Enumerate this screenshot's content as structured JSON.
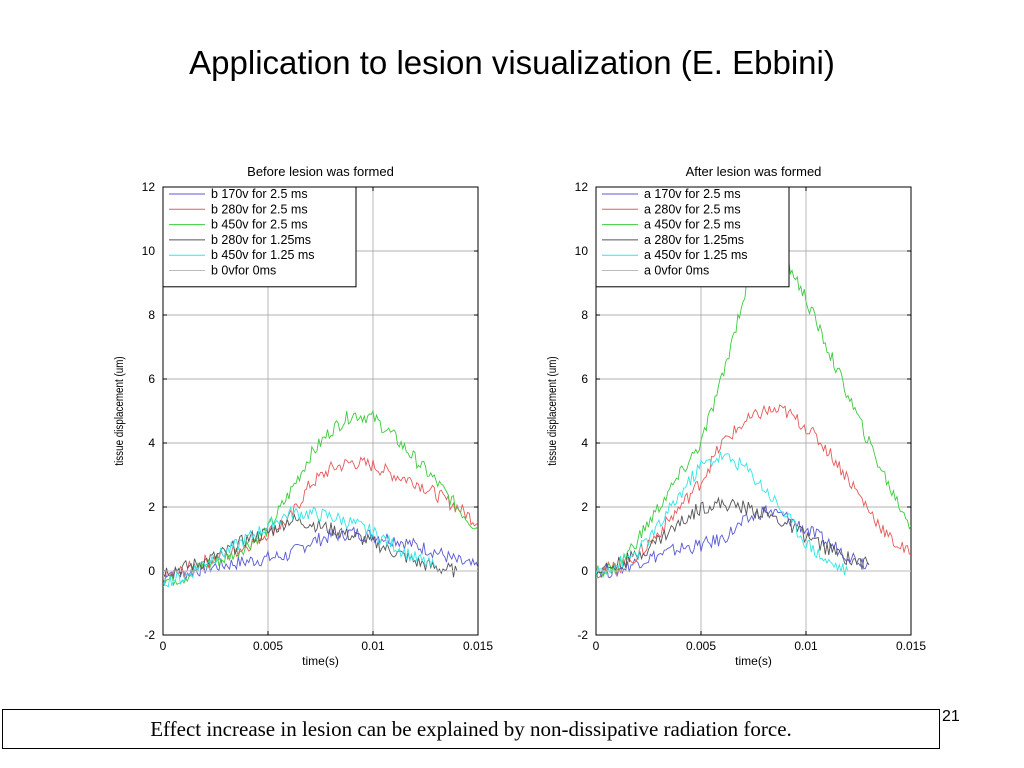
{
  "slide": {
    "title": "Application to lesion visualization (E. Ebbini)",
    "caption": "Effect increase in lesion can be explained by non-dissipative radiation force.",
    "page_number": "21"
  },
  "chart_data": [
    {
      "type": "line",
      "title": "Before lesion was formed",
      "xlabel": "time(s)",
      "ylabel": "tissue displacement (um)",
      "xlim": [
        0,
        0.015
      ],
      "ylim": [
        -2,
        12
      ],
      "xticks": [
        "0",
        "0.005",
        "0.01",
        "0.015"
      ],
      "yticks": [
        "-2",
        "0",
        "2",
        "4",
        "6",
        "8",
        "10",
        "12"
      ],
      "grid": true,
      "legend": "top-left",
      "series": [
        {
          "name": "b 170v for 2.5 ms",
          "color": "#5b5bd6",
          "x": [
            0,
            0.001,
            0.002,
            0.003,
            0.004,
            0.005,
            0.006,
            0.007,
            0.008,
            0.009,
            0.01,
            0.011,
            0.012,
            0.013,
            0.014,
            0.015
          ],
          "y": [
            0,
            -0.1,
            0.1,
            0.2,
            0.3,
            0.4,
            0.5,
            0.9,
            1.1,
            1.2,
            1.1,
            1.0,
            0.8,
            0.6,
            0.3,
            0.1
          ]
        },
        {
          "name": "b 280v for 2.5 ms",
          "color": "#e85a5a",
          "x": [
            0,
            0.001,
            0.002,
            0.003,
            0.004,
            0.005,
            0.006,
            0.007,
            0.008,
            0.009,
            0.01,
            0.011,
            0.012,
            0.013,
            0.014,
            0.015
          ],
          "y": [
            -0.2,
            0.0,
            0.3,
            0.5,
            0.8,
            1.2,
            1.6,
            2.7,
            3.2,
            3.4,
            3.3,
            3.0,
            2.8,
            2.4,
            2.0,
            1.5
          ]
        },
        {
          "name": "b 450v for 2.5 ms",
          "color": "#3ccc3c",
          "x": [
            0,
            0.001,
            0.002,
            0.003,
            0.004,
            0.005,
            0.006,
            0.007,
            0.008,
            0.009,
            0.01,
            0.011,
            0.012,
            0.013,
            0.014,
            0.015
          ],
          "y": [
            -0.3,
            -0.2,
            0.2,
            0.4,
            0.8,
            1.3,
            2.4,
            3.6,
            4.4,
            4.9,
            4.8,
            4.2,
            3.5,
            2.8,
            2.0,
            1.3
          ]
        },
        {
          "name": "b 280v for 1.25ms",
          "color": "#555555",
          "x": [
            0,
            0.001,
            0.002,
            0.003,
            0.004,
            0.005,
            0.006,
            0.007,
            0.008,
            0.009,
            0.01,
            0.011,
            0.012,
            0.013,
            0.014
          ],
          "y": [
            0,
            0.1,
            0.3,
            0.6,
            1.0,
            1.2,
            1.6,
            1.5,
            1.3,
            1.1,
            0.9,
            0.6,
            0.3,
            0.1,
            0.0
          ]
        },
        {
          "name": "b 450v for 1.25 ms",
          "color": "#33e6e6",
          "x": [
            0,
            0.001,
            0.002,
            0.003,
            0.004,
            0.005,
            0.006,
            0.007,
            0.008,
            0.009,
            0.01,
            0.011,
            0.012,
            0.013
          ],
          "y": [
            -0.3,
            -0.2,
            0.3,
            0.6,
            1.0,
            1.4,
            1.8,
            1.8,
            1.7,
            1.5,
            1.2,
            0.8,
            0.4,
            0.1
          ]
        },
        {
          "name": "b 0vfor 0ms",
          "color": "#bbbbbb",
          "x": [
            0,
            0.015
          ],
          "y": [
            0,
            0
          ]
        }
      ]
    },
    {
      "type": "line",
      "title": "After lesion was formed",
      "xlabel": "time(s)",
      "ylabel": "tissue displacement (um)",
      "xlim": [
        0,
        0.015
      ],
      "ylim": [
        -2,
        12
      ],
      "xticks": [
        "0",
        "0.005",
        "0.01",
        "0.015"
      ],
      "yticks": [
        "-2",
        "0",
        "2",
        "4",
        "6",
        "8",
        "10",
        "12"
      ],
      "grid": true,
      "legend": "top-left",
      "series": [
        {
          "name": "a 170v for 2.5 ms",
          "color": "#5b5bd6",
          "x": [
            0,
            0.001,
            0.002,
            0.003,
            0.004,
            0.005,
            0.006,
            0.007,
            0.008,
            0.009,
            0.01,
            0.011,
            0.012,
            0.013
          ],
          "y": [
            0,
            0.0,
            0.3,
            0.5,
            0.7,
            0.8,
            1.0,
            1.5,
            1.9,
            1.7,
            1.3,
            0.9,
            0.5,
            0.2
          ]
        },
        {
          "name": "a 280v for 2.5 ms",
          "color": "#e85a5a",
          "x": [
            0,
            0.001,
            0.002,
            0.003,
            0.004,
            0.005,
            0.006,
            0.007,
            0.008,
            0.009,
            0.01,
            0.011,
            0.012,
            0.013,
            0.014,
            0.015
          ],
          "y": [
            0,
            0.1,
            0.5,
            1.2,
            2.0,
            2.8,
            4.0,
            4.6,
            5.0,
            5.0,
            4.5,
            3.8,
            2.9,
            1.9,
            1.0,
            0.5
          ]
        },
        {
          "name": "a 450v for 2.5 ms",
          "color": "#3ccc3c",
          "x": [
            0,
            0.001,
            0.002,
            0.003,
            0.004,
            0.005,
            0.006,
            0.007,
            0.008,
            0.009,
            0.01,
            0.011,
            0.012,
            0.013,
            0.014,
            0.015
          ],
          "y": [
            0,
            0.1,
            1.0,
            2.0,
            3.0,
            4.0,
            6.0,
            8.5,
            10.2,
            9.8,
            8.5,
            7.0,
            5.5,
            4.0,
            2.6,
            1.4
          ]
        },
        {
          "name": "a 280v for 1.25ms",
          "color": "#555555",
          "x": [
            0,
            0.001,
            0.002,
            0.003,
            0.004,
            0.005,
            0.006,
            0.007,
            0.008,
            0.009,
            0.01,
            0.011,
            0.012,
            0.013
          ],
          "y": [
            0,
            0.2,
            0.5,
            1.0,
            1.5,
            2.0,
            2.1,
            2.0,
            1.8,
            1.5,
            1.1,
            0.7,
            0.4,
            0.2
          ]
        },
        {
          "name": "a 450v for 1.25 ms",
          "color": "#33e6e6",
          "x": [
            0,
            0.001,
            0.002,
            0.003,
            0.004,
            0.005,
            0.006,
            0.007,
            0.008,
            0.009,
            0.01,
            0.011,
            0.012
          ],
          "y": [
            0,
            0.2,
            0.6,
            1.4,
            2.4,
            3.3,
            3.6,
            3.3,
            2.6,
            1.8,
            0.9,
            0.3,
            0.0
          ]
        },
        {
          "name": "a 0vfor 0ms",
          "color": "#bbbbbb",
          "x": [
            0,
            0.015
          ],
          "y": [
            0,
            0
          ]
        }
      ]
    }
  ]
}
